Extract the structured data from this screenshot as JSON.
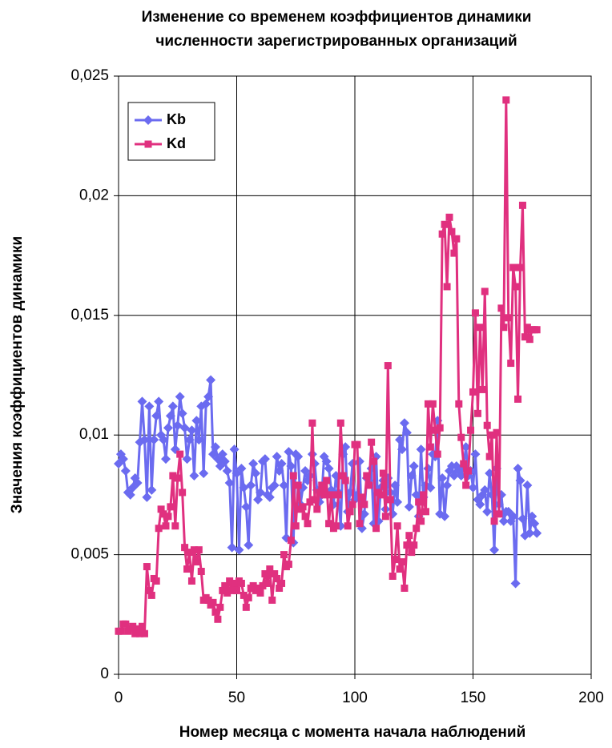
{
  "chart_data": {
    "type": "line",
    "title": [
      "Изменение со временем коэффициентов динамики",
      "численности зарегистрированных организаций"
    ],
    "x_label": "Номер месяца с момента начала наблюдений",
    "y_label": "Значения коэффициентов динамики",
    "x": [
      0,
      1,
      2,
      3,
      4,
      5,
      6,
      7,
      8,
      9,
      10,
      11,
      12,
      13,
      14,
      15,
      16,
      17,
      18,
      19,
      20,
      21,
      22,
      23,
      24,
      25,
      26,
      27,
      28,
      29,
      30,
      31,
      32,
      33,
      34,
      35,
      36,
      37,
      38,
      39,
      40,
      41,
      42,
      43,
      44,
      45,
      46,
      47,
      48,
      49,
      50,
      51,
      52,
      53,
      54,
      55,
      56,
      57,
      58,
      59,
      60,
      61,
      62,
      63,
      64,
      65,
      66,
      67,
      68,
      69,
      70,
      71,
      72,
      73,
      74,
      75,
      76,
      77,
      78,
      79,
      80,
      81,
      82,
      83,
      84,
      85,
      86,
      87,
      88,
      89,
      90,
      91,
      92,
      93,
      94,
      95,
      96,
      97,
      98,
      99,
      100,
      101,
      102,
      103,
      104,
      105,
      106,
      107,
      108,
      109,
      110,
      111,
      112,
      113,
      114,
      115,
      116,
      117,
      118,
      119,
      120,
      121,
      122,
      123,
      124,
      125,
      126,
      127,
      128,
      129,
      130,
      131,
      132,
      133,
      134,
      135,
      136,
      137,
      138,
      139,
      140,
      141,
      142,
      143,
      144,
      145,
      146,
      147,
      148,
      149,
      150,
      151,
      152,
      153,
      154,
      155,
      156,
      157,
      158,
      159,
      160,
      161,
      162,
      163,
      164,
      165,
      166,
      167,
      168,
      169,
      170,
      171,
      172,
      173,
      174,
      175,
      176,
      177
    ],
    "series": [
      {
        "name": "Kb",
        "color": "#6b6bf0",
        "marker": "diamond",
        "values": [
          0.0088,
          0.0092,
          0.009,
          0.0085,
          0.0076,
          0.0075,
          0.0078,
          0.0082,
          0.008,
          0.0097,
          0.0114,
          0.0098,
          0.0074,
          0.0112,
          0.0077,
          0.0098,
          0.0108,
          0.0114,
          0.01,
          0.0098,
          0.009,
          0.0103,
          0.0108,
          0.0112,
          0.0094,
          0.0104,
          0.0116,
          0.0109,
          0.0103,
          0.009,
          0.0098,
          0.0102,
          0.0083,
          0.0106,
          0.0098,
          0.0112,
          0.0084,
          0.0113,
          0.0116,
          0.0123,
          0.0092,
          0.0095,
          0.009,
          0.0087,
          0.0092,
          0.0089,
          0.0085,
          0.008,
          0.0053,
          0.0094,
          0.0084,
          0.0052,
          0.0086,
          0.0078,
          0.007,
          0.0054,
          0.0079,
          0.0088,
          0.0084,
          0.0073,
          0.0076,
          0.0089,
          0.009,
          0.0075,
          0.0074,
          0.0078,
          0.0079,
          0.0091,
          0.0085,
          0.0088,
          0.0079,
          0.0057,
          0.0093,
          0.0087,
          0.0055,
          0.0092,
          0.0091,
          0.0071,
          0.0078,
          0.0085,
          0.0081,
          0.0083,
          0.0092,
          0.0088,
          0.0077,
          0.0072,
          0.0075,
          0.0091,
          0.0089,
          0.0086,
          0.0077,
          0.0071,
          0.0083,
          0.0076,
          0.0062,
          0.0092,
          0.0095,
          0.0068,
          0.0076,
          0.0088,
          0.0073,
          0.0075,
          0.0089,
          0.0061,
          0.0067,
          0.0082,
          0.0081,
          0.0086,
          0.0063,
          0.0091,
          0.0064,
          0.0078,
          0.0081,
          0.0069,
          0.0082,
          0.0076,
          0.0067,
          0.0079,
          0.0072,
          0.0098,
          0.0094,
          0.0105,
          0.0101,
          0.007,
          0.0083,
          0.0087,
          0.0075,
          0.0066,
          0.0094,
          0.0074,
          0.0079,
          0.0086,
          0.0078,
          0.0092,
          0.0091,
          0.0106,
          0.0067,
          0.0082,
          0.0066,
          0.0079,
          0.0085,
          0.0087,
          0.0083,
          0.0087,
          0.0085,
          0.0083,
          0.0087,
          0.0095,
          0.0083,
          0.0085,
          0.0078,
          0.0092,
          0.0073,
          0.0071,
          0.0075,
          0.0077,
          0.0068,
          0.0084,
          0.0075,
          0.0052,
          0.0086,
          0.0071,
          0.0075,
          0.0064,
          0.0068,
          0.0068,
          0.0064,
          0.0066,
          0.0038,
          0.0086,
          0.0081,
          0.0065,
          0.0058,
          0.0079,
          0.0059,
          0.0066,
          0.0063,
          0.0059
        ]
      },
      {
        "name": "Kd",
        "color": "#e0307f",
        "marker": "square",
        "values": [
          0.0018,
          0.0018,
          0.0021,
          0.0021,
          0.0018,
          0.0019,
          0.002,
          0.0017,
          0.0019,
          0.0017,
          0.002,
          0.0017,
          0.0045,
          0.0035,
          0.0033,
          0.004,
          0.0039,
          0.0061,
          0.0069,
          0.0067,
          0.0062,
          0.0066,
          0.007,
          0.0083,
          0.0062,
          0.0082,
          0.0092,
          0.0076,
          0.0053,
          0.0044,
          0.0051,
          0.0039,
          0.0052,
          0.0047,
          0.0052,
          0.0043,
          0.0031,
          0.0032,
          0.0031,
          0.0029,
          0.003,
          0.0026,
          0.0023,
          0.0028,
          0.0035,
          0.0037,
          0.0034,
          0.0039,
          0.0035,
          0.0038,
          0.0035,
          0.0039,
          0.0038,
          0.0033,
          0.0028,
          0.0032,
          0.0036,
          0.0037,
          0.0035,
          0.0036,
          0.0034,
          0.0037,
          0.0042,
          0.0038,
          0.0044,
          0.0031,
          0.0042,
          0.004,
          0.0036,
          0.0038,
          0.005,
          0.0045,
          0.0046,
          0.0056,
          0.0083,
          0.0062,
          0.0079,
          0.0069,
          0.007,
          0.0066,
          0.0063,
          0.0072,
          0.0105,
          0.0073,
          0.0069,
          0.0076,
          0.0079,
          0.0075,
          0.0081,
          0.0063,
          0.0075,
          0.0061,
          0.0062,
          0.0075,
          0.0105,
          0.0083,
          0.0081,
          0.0062,
          0.0068,
          0.0071,
          0.0096,
          0.0096,
          0.0063,
          0.0074,
          0.0071,
          0.0083,
          0.0079,
          0.0097,
          0.0089,
          0.0061,
          0.0076,
          0.0075,
          0.0084,
          0.0066,
          0.0129,
          0.0073,
          0.0041,
          0.0048,
          0.0062,
          0.0044,
          0.0047,
          0.0036,
          0.0054,
          0.0058,
          0.0051,
          0.0054,
          0.0061,
          0.0072,
          0.0064,
          0.0075,
          0.0068,
          0.0113,
          0.0095,
          0.0113,
          0.0102,
          0.0092,
          0.0103,
          0.0184,
          0.0188,
          0.0162,
          0.0191,
          0.0185,
          0.0176,
          0.0182,
          0.0113,
          0.0099,
          0.0088,
          0.0079,
          0.0085,
          0.0102,
          0.0118,
          0.0151,
          0.0109,
          0.0145,
          0.0119,
          0.016,
          0.0104,
          0.0091,
          0.01,
          0.0064,
          0.0101,
          0.0067,
          0.0153,
          0.0145,
          0.024,
          0.0149,
          0.013,
          0.017,
          0.0162,
          0.0115,
          0.017,
          0.0196,
          0.0141,
          0.0145,
          0.014,
          0.0144,
          0.0144,
          0.0144
        ]
      }
    ],
    "xlim": [
      0,
      200
    ],
    "xticks": [
      0,
      50,
      100,
      150,
      200
    ],
    "ylim": [
      0,
      0.025
    ],
    "yticks": [
      0,
      {
        "value": 0.005,
        "label": "0,005"
      },
      {
        "value": 0.01,
        "label": "0,01"
      },
      {
        "value": 0.015,
        "label": "0,015"
      },
      {
        "value": 0.02,
        "label": "0,02"
      },
      {
        "value": 0.025,
        "label": "0,025"
      }
    ],
    "grid": true,
    "legend": "upper-left"
  }
}
